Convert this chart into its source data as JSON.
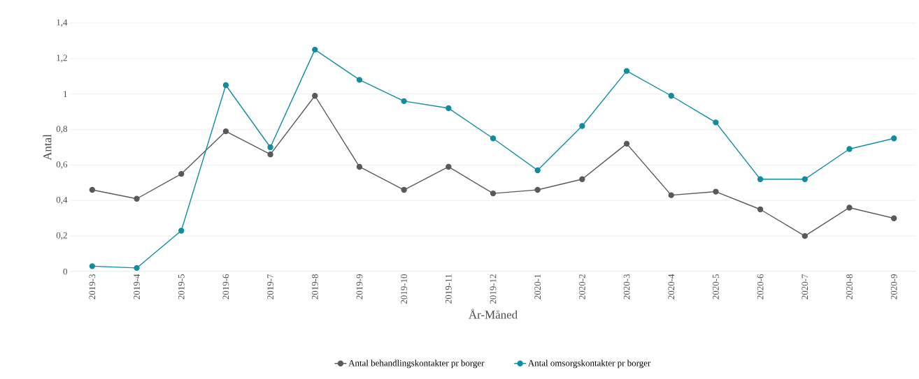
{
  "chart_data": {
    "type": "line",
    "xlabel": "År-Måned",
    "ylabel": "Antal",
    "categories": [
      "2019-3",
      "2019-4",
      "2019-5",
      "2019-6",
      "2019-7",
      "2019-8",
      "2019-9",
      "2019-10",
      "2019-11",
      "2019-12",
      "2020-1",
      "2020-2",
      "2020-3",
      "2020-4",
      "2020-5",
      "2020-6",
      "2020-7",
      "2020-8",
      "2020-9"
    ],
    "series": [
      {
        "name": "Antal behandlingskontakter pr borger",
        "color": "#595959",
        "values": [
          0.46,
          0.41,
          0.55,
          0.79,
          0.66,
          0.99,
          0.59,
          0.46,
          0.59,
          0.44,
          0.46,
          0.52,
          0.72,
          0.43,
          0.45,
          0.35,
          0.2,
          0.36,
          0.3
        ]
      },
      {
        "name": "Antal omsorgskontakter pr borger",
        "color": "#0f8ca0",
        "values": [
          0.03,
          0.02,
          0.23,
          1.05,
          0.7,
          1.25,
          1.08,
          0.96,
          0.92,
          0.75,
          0.57,
          0.82,
          1.13,
          0.99,
          0.84,
          0.52,
          0.52,
          0.69,
          0.75
        ]
      }
    ],
    "ylim": [
      0,
      1.4
    ],
    "yticks": [
      0,
      {
        "value": 0.2,
        "label": "0,2"
      },
      {
        "value": 0.4,
        "label": "0,4"
      },
      {
        "value": 0.6,
        "label": "0,6"
      },
      {
        "value": 0.8,
        "label": "0,8"
      },
      1,
      {
        "value": 1.2,
        "label": "1,2"
      },
      {
        "value": 1.4,
        "label": "1,4"
      }
    ],
    "grid": "y",
    "legend": "bottom",
    "marker": "circle",
    "line_style": "solid"
  }
}
